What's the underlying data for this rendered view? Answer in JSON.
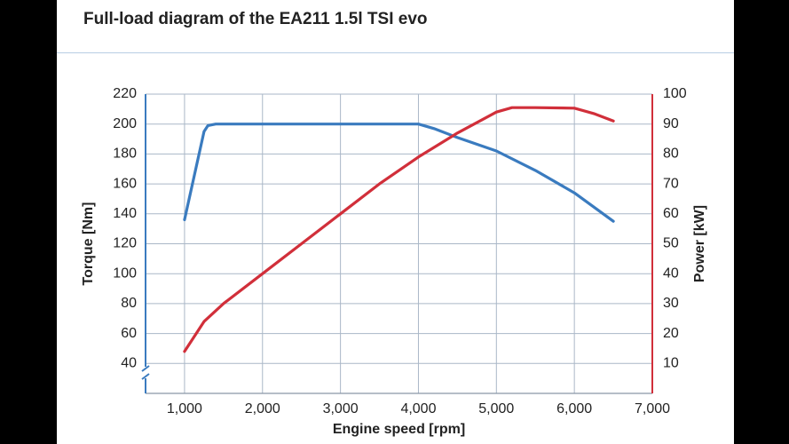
{
  "page": {
    "title": "Full-load diagram of the EA211 1.5l TSI evo"
  },
  "colors": {
    "torque": "#3a7bbf",
    "power": "#d12f3a",
    "grid": "#aab7c7",
    "left_axis": "#3a7bbf",
    "right_axis": "#d12f3a"
  },
  "chart_data": {
    "type": "line",
    "title": "Full-load diagram of the EA211 1.5l TSI evo",
    "xlabel": "Engine speed [rpm]",
    "ylabel": "Torque [Nm]",
    "y2label": "Power [kW]",
    "xlim": [
      500,
      7000
    ],
    "ylim": [
      20,
      220
    ],
    "y2lim": [
      0,
      100
    ],
    "x_ticks": [
      1000,
      2000,
      3000,
      4000,
      5000,
      6000,
      7000
    ],
    "x_tick_labels": [
      "1,000",
      "2,000",
      "3,000",
      "4,000",
      "5,000",
      "6,000",
      "7,000"
    ],
    "y_ticks": [
      40,
      60,
      80,
      100,
      120,
      140,
      160,
      180,
      200,
      220
    ],
    "y2_ticks": [
      10,
      20,
      30,
      40,
      50,
      60,
      70,
      80,
      90,
      100
    ],
    "y_axis_break": true,
    "grid": true,
    "series": [
      {
        "axis": "left",
        "x": [
          1000,
          1250,
          1300,
          1400,
          2000,
          3000,
          4000,
          4200,
          4500,
          5000,
          5500,
          6000,
          6500
        ],
        "y": [
          136,
          195,
          199,
          200,
          200,
          200,
          200,
          197,
          191,
          182,
          169,
          154,
          135
        ]
      },
      {
        "axis": "right",
        "x": [
          1000,
          1250,
          1500,
          2000,
          2500,
          3000,
          3500,
          4000,
          4500,
          5000,
          5200,
          5500,
          6000,
          6250,
          6500
        ],
        "y": [
          14,
          24,
          30,
          40,
          50,
          60,
          70,
          79,
          87,
          94,
          95.5,
          95.5,
          95.3,
          93.5,
          91
        ]
      }
    ]
  }
}
